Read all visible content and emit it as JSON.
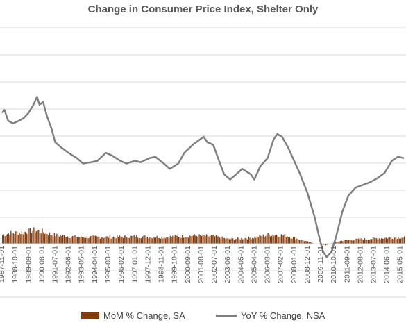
{
  "chart_data": {
    "type": "bar+line",
    "title": "Change in Consumer Price Index, Shelter Only",
    "x_tick_labels": [
      "1987-11-01",
      "1988-10-01",
      "1989-09-01",
      "1990-08-01",
      "1991-07-01",
      "1992-06-01",
      "1993-05-01",
      "1994-04-01",
      "1995-03-01",
      "1996-02-01",
      "1997-01-01",
      "1997-12-01",
      "1998-11-01",
      "1999-10-01",
      "2000-09-01",
      "2001-08-01",
      "2002-07-01",
      "2003-06-01",
      "2004-05-01",
      "2005-04-01",
      "2006-03-01",
      "2007-02-01",
      "2008-01-01",
      "2008-12-01",
      "2009-11-01",
      "2010-10-01",
      "2011-09-01",
      "2012-08-01",
      "2013-07-01",
      "2014-06-01",
      "2015-05-01"
    ],
    "x_range": [
      "1987-11-01",
      "2015-08-01"
    ],
    "grid": true,
    "legend_position": "bottom",
    "series": [
      {
        "name": "MoM % Change, SA",
        "style": "bar",
        "color": "#843C0C",
        "anchors": [
          [
            "1987-11-01",
            0.33
          ],
          [
            "1988-06-01",
            0.4
          ],
          [
            "1989-03-01",
            0.42
          ],
          [
            "1990-01-01",
            0.5
          ],
          [
            "1990-08-01",
            0.45
          ],
          [
            "1991-06-01",
            0.32
          ],
          [
            "1993-01-01",
            0.25
          ],
          [
            "1995-01-01",
            0.25
          ],
          [
            "1997-01-01",
            0.27
          ],
          [
            "1999-01-01",
            0.25
          ],
          [
            "2001-01-01",
            0.3
          ],
          [
            "2002-06-01",
            0.28
          ],
          [
            "2003-06-01",
            0.17
          ],
          [
            "2005-01-01",
            0.22
          ],
          [
            "2006-06-01",
            0.35
          ],
          [
            "2007-06-01",
            0.3
          ],
          [
            "2008-06-01",
            0.15
          ],
          [
            "2009-06-01",
            0.0
          ],
          [
            "2010-03-01",
            -0.05
          ],
          [
            "2010-10-01",
            0.05
          ],
          [
            "2011-06-01",
            0.13
          ],
          [
            "2013-01-01",
            0.18
          ],
          [
            "2015-08-01",
            0.25
          ]
        ]
      },
      {
        "name": "YoY % Change, NSA",
        "style": "line",
        "color": "#7F7F7F",
        "points": [
          [
            "1987-11-01",
            4.9
          ],
          [
            "1988-01-01",
            5.0
          ],
          [
            "1988-04-01",
            4.6
          ],
          [
            "1988-08-01",
            4.5
          ],
          [
            "1989-01-01",
            4.6
          ],
          [
            "1989-05-01",
            4.7
          ],
          [
            "1989-09-01",
            4.9
          ],
          [
            "1990-01-01",
            5.2
          ],
          [
            "1990-04-01",
            5.5
          ],
          [
            "1990-06-01",
            5.2
          ],
          [
            "1990-09-01",
            5.3
          ],
          [
            "1990-12-01",
            4.8
          ],
          [
            "1991-04-01",
            4.3
          ],
          [
            "1991-07-01",
            3.8
          ],
          [
            "1991-12-01",
            3.6
          ],
          [
            "1992-06-01",
            3.4
          ],
          [
            "1993-01-01",
            3.2
          ],
          [
            "1993-06-01",
            3.0
          ],
          [
            "1994-01-01",
            3.05
          ],
          [
            "1994-06-01",
            3.1
          ],
          [
            "1995-01-01",
            3.4
          ],
          [
            "1995-06-01",
            3.3
          ],
          [
            "1996-01-01",
            3.1
          ],
          [
            "1996-06-01",
            3.0
          ],
          [
            "1997-01-01",
            3.1
          ],
          [
            "1997-06-01",
            3.05
          ],
          [
            "1998-01-01",
            3.2
          ],
          [
            "1998-06-01",
            3.25
          ],
          [
            "1999-01-01",
            3.0
          ],
          [
            "1999-06-01",
            2.8
          ],
          [
            "2000-01-01",
            3.0
          ],
          [
            "2000-06-01",
            3.4
          ],
          [
            "2001-01-01",
            3.7
          ],
          [
            "2001-07-01",
            3.9
          ],
          [
            "2001-10-01",
            4.0
          ],
          [
            "2002-01-01",
            3.8
          ],
          [
            "2002-06-01",
            3.7
          ],
          [
            "2002-10-01",
            3.2
          ],
          [
            "2003-03-01",
            2.6
          ],
          [
            "2003-08-01",
            2.4
          ],
          [
            "2004-01-01",
            2.6
          ],
          [
            "2004-06-01",
            2.8
          ],
          [
            "2005-01-01",
            2.6
          ],
          [
            "2005-04-01",
            2.4
          ],
          [
            "2005-09-01",
            2.9
          ],
          [
            "2006-03-01",
            3.2
          ],
          [
            "2006-08-01",
            3.9
          ],
          [
            "2006-11-01",
            4.1
          ],
          [
            "2007-03-01",
            4.0
          ],
          [
            "2007-08-01",
            3.6
          ],
          [
            "2008-01-01",
            3.1
          ],
          [
            "2008-06-01",
            2.6
          ],
          [
            "2008-12-01",
            1.9
          ],
          [
            "2009-06-01",
            1.0
          ],
          [
            "2009-10-01",
            0.2
          ],
          [
            "2010-01-01",
            -0.3
          ],
          [
            "2010-04-01",
            -0.5
          ],
          [
            "2010-08-01",
            -0.3
          ],
          [
            "2010-12-01",
            0.3
          ],
          [
            "2011-05-01",
            1.2
          ],
          [
            "2011-10-01",
            1.8
          ],
          [
            "2012-04-01",
            2.1
          ],
          [
            "2012-10-01",
            2.2
          ],
          [
            "2013-04-01",
            2.3
          ],
          [
            "2013-10-01",
            2.45
          ],
          [
            "2014-04-01",
            2.65
          ],
          [
            "2014-10-01",
            3.1
          ],
          [
            "2015-03-01",
            3.25
          ],
          [
            "2015-08-01",
            3.2
          ]
        ]
      }
    ]
  }
}
